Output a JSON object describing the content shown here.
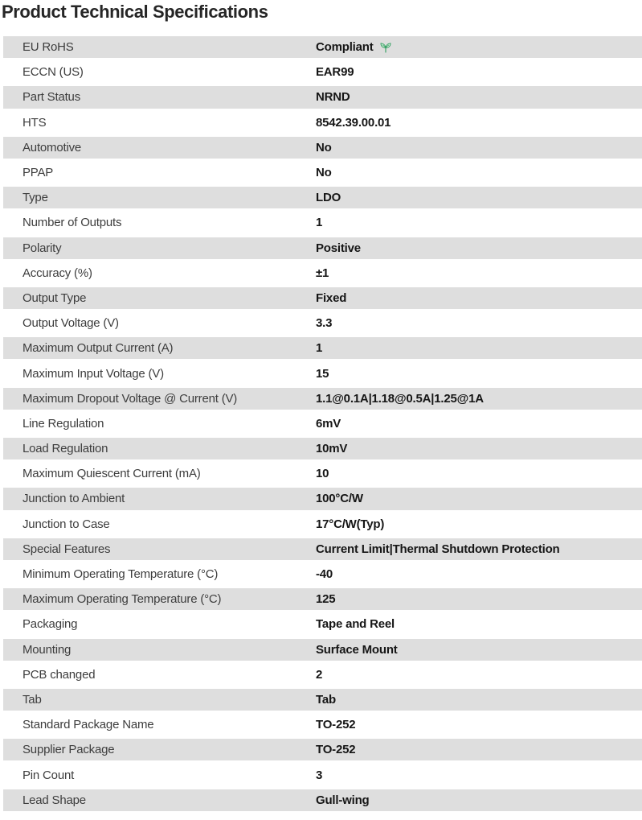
{
  "title": "Product Technical Specifications",
  "colors": {
    "row_alt_background": "#dedede",
    "label_text": "#3d3d3d",
    "value_text": "#161616",
    "title_text": "#262626",
    "eco_icon_green": "#2f9d5f"
  },
  "table": {
    "rows": [
      {
        "label": "EU RoHS",
        "value": "Compliant",
        "icon": "eco-leaf-icon"
      },
      {
        "label": "ECCN (US)",
        "value": "EAR99"
      },
      {
        "label": "Part Status",
        "value": "NRND"
      },
      {
        "label": "HTS",
        "value": "8542.39.00.01"
      },
      {
        "label": "Automotive",
        "value": "No"
      },
      {
        "label": "PPAP",
        "value": "No"
      },
      {
        "label": "Type",
        "value": "LDO"
      },
      {
        "label": "Number of Outputs",
        "value": "1"
      },
      {
        "label": "Polarity",
        "value": "Positive"
      },
      {
        "label": "Accuracy (%)",
        "value": "±1"
      },
      {
        "label": "Output Type",
        "value": "Fixed"
      },
      {
        "label": "Output Voltage (V)",
        "value": "3.3"
      },
      {
        "label": "Maximum Output Current (A)",
        "value": "1"
      },
      {
        "label": "Maximum Input Voltage (V)",
        "value": "15"
      },
      {
        "label": "Maximum Dropout Voltage @ Current (V)",
        "value": "1.1@0.1A|1.18@0.5A|1.25@1A"
      },
      {
        "label": "Line Regulation",
        "value": "6mV"
      },
      {
        "label": "Load Regulation",
        "value": "10mV"
      },
      {
        "label": "Maximum Quiescent Current (mA)",
        "value": "10"
      },
      {
        "label": "Junction to Ambient",
        "value": "100°C/W"
      },
      {
        "label": "Junction to Case",
        "value": "17°C/W(Typ)"
      },
      {
        "label": "Special Features",
        "value": "Current Limit|Thermal Shutdown Protection"
      },
      {
        "label": "Minimum Operating Temperature (°C)",
        "value": "-40"
      },
      {
        "label": "Maximum Operating Temperature (°C)",
        "value": "125"
      },
      {
        "label": "Packaging",
        "value": "Tape and Reel"
      },
      {
        "label": "Mounting",
        "value": "Surface Mount"
      },
      {
        "label": "PCB changed",
        "value": "2"
      },
      {
        "label": "Tab",
        "value": "Tab"
      },
      {
        "label": "Standard Package Name",
        "value": "TO-252"
      },
      {
        "label": "Supplier Package",
        "value": "TO-252"
      },
      {
        "label": "Pin Count",
        "value": "3"
      },
      {
        "label": "Lead Shape",
        "value": "Gull-wing"
      }
    ]
  }
}
